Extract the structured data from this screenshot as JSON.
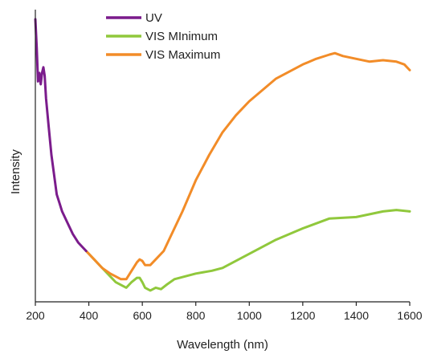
{
  "chart_data": {
    "type": "line",
    "title": "",
    "xlabel": "Wavelength (nm)",
    "ylabel": "Intensity",
    "xlim": [
      200,
      1600
    ],
    "ylim": [
      0,
      100
    ],
    "xticks": [
      200,
      400,
      600,
      800,
      1000,
      1200,
      1400,
      1600
    ],
    "grid": false,
    "legend_position": "top-left",
    "series": [
      {
        "name": "UV",
        "color": "#7b1c8c",
        "x": [
          200,
          205,
          210,
          215,
          220,
          225,
          230,
          235,
          240,
          250,
          260,
          270,
          280,
          290,
          300,
          320,
          340,
          360,
          380,
          390
        ],
        "y": [
          100,
          90,
          78,
          81,
          77,
          81,
          83,
          80,
          72,
          62,
          52,
          45,
          38,
          35,
          32,
          28,
          24,
          21,
          19,
          18
        ]
      },
      {
        "name": "VIS MInimum",
        "color": "#90c83c",
        "x": [
          390,
          420,
          450,
          480,
          500,
          520,
          540,
          560,
          580,
          590,
          600,
          610,
          630,
          650,
          670,
          690,
          720,
          760,
          800,
          860,
          900,
          1000,
          1100,
          1200,
          1300,
          1400,
          1450,
          1500,
          1550,
          1600
        ],
        "y": [
          18,
          15,
          12,
          9,
          7,
          6,
          5,
          7,
          8.5,
          8.5,
          7,
          5,
          4,
          5,
          4.5,
          6,
          8,
          9,
          10,
          11,
          12,
          17,
          22,
          26,
          29.5,
          30,
          31,
          32,
          32.5,
          32
        ]
      },
      {
        "name": "VIS Maximum",
        "color": "#f28c28",
        "x": [
          390,
          420,
          450,
          480,
          500,
          520,
          540,
          560,
          580,
          590,
          600,
          610,
          630,
          650,
          680,
          700,
          750,
          800,
          850,
          900,
          950,
          1000,
          1100,
          1200,
          1250,
          1300,
          1320,
          1350,
          1400,
          1450,
          1500,
          1550,
          1580,
          1600
        ],
        "y": [
          18,
          15,
          12,
          10,
          9,
          8,
          8,
          11,
          14,
          15,
          14.5,
          13,
          13,
          15,
          18,
          22,
          32,
          43,
          52,
          60,
          66,
          71,
          79,
          84,
          86,
          87.5,
          88,
          87,
          86,
          85,
          85.5,
          85,
          84,
          82
        ]
      }
    ]
  }
}
